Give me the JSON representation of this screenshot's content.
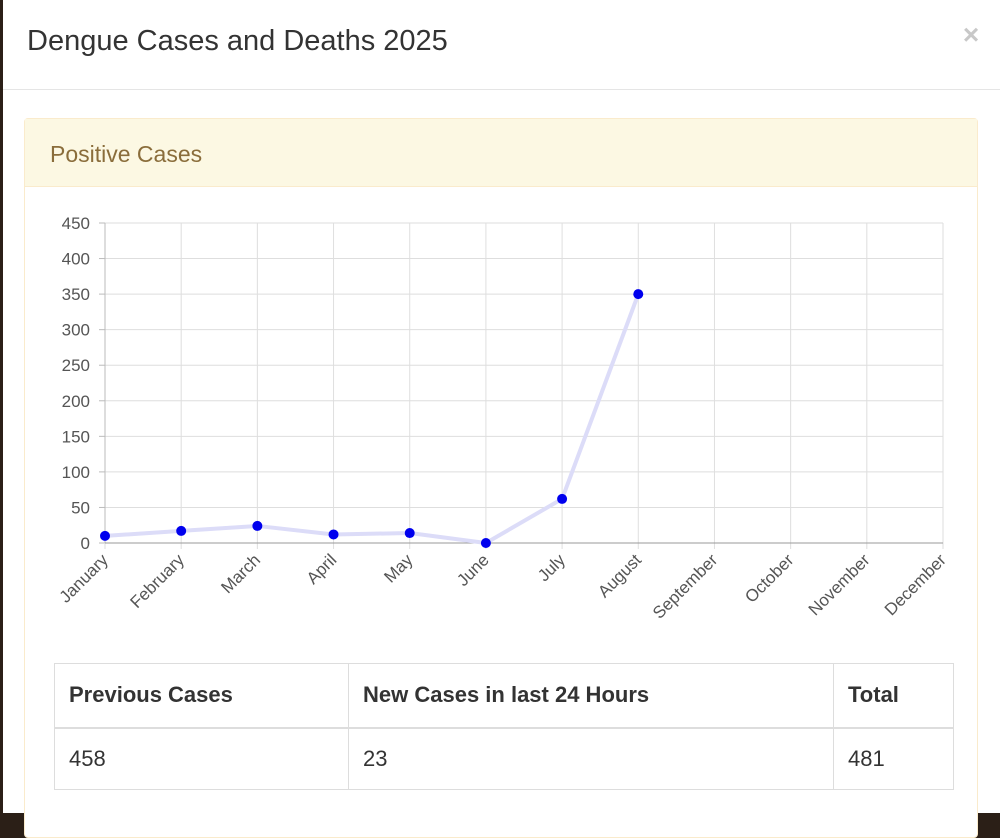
{
  "modal": {
    "title": "Dengue Cases and Deaths 2025",
    "close_label": "×"
  },
  "panel": {
    "title": "Positive Cases"
  },
  "chart_data": {
    "type": "line",
    "title": "",
    "xlabel": "",
    "ylabel": "",
    "categories": [
      "January",
      "February",
      "March",
      "April",
      "May",
      "June",
      "July",
      "August",
      "September",
      "October",
      "November",
      "December"
    ],
    "series": [
      {
        "values": [
          10,
          17,
          24,
          12,
          14,
          0,
          62,
          350,
          null,
          null,
          null,
          null
        ]
      }
    ],
    "ylim": [
      0,
      450
    ],
    "yticks": [
      0,
      50,
      100,
      150,
      200,
      250,
      300,
      350,
      400,
      450
    ],
    "grid": true,
    "line_color": "#dcdcf8",
    "point_color": "#0000ee"
  },
  "table": {
    "headers": [
      "Previous Cases",
      "New Cases in last 24 Hours",
      "Total"
    ],
    "rows": [
      [
        "458",
        "23",
        "481"
      ]
    ]
  }
}
